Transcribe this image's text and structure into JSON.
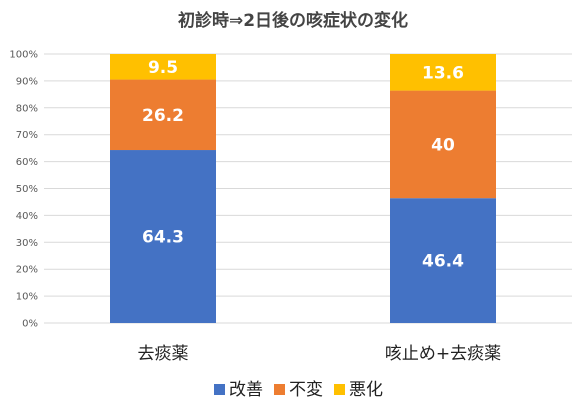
{
  "chart_data": {
    "type": "bar",
    "stacked": true,
    "title": "初診時⇒2日後の咳症状の変化",
    "categories": [
      "去痰薬",
      "咳止め+去痰薬"
    ],
    "series": [
      {
        "name": "改善",
        "values": [
          64.3,
          46.4
        ],
        "color": "#4472C4",
        "label_color": "#ffffff"
      },
      {
        "name": "不変",
        "values": [
          26.2,
          40
        ],
        "color": "#ED7D31",
        "label_color": "#ffffff"
      },
      {
        "name": "悪化",
        "values": [
          9.5,
          13.6
        ],
        "color": "#FFC000",
        "label_color": "#ffffff"
      }
    ],
    "ylim": [
      0,
      100
    ],
    "yticks": [
      "0%",
      "10%",
      "20%",
      "30%",
      "40%",
      "50%",
      "60%",
      "70%",
      "80%",
      "90%",
      "100%"
    ],
    "grid": true,
    "legend": "bottom"
  }
}
